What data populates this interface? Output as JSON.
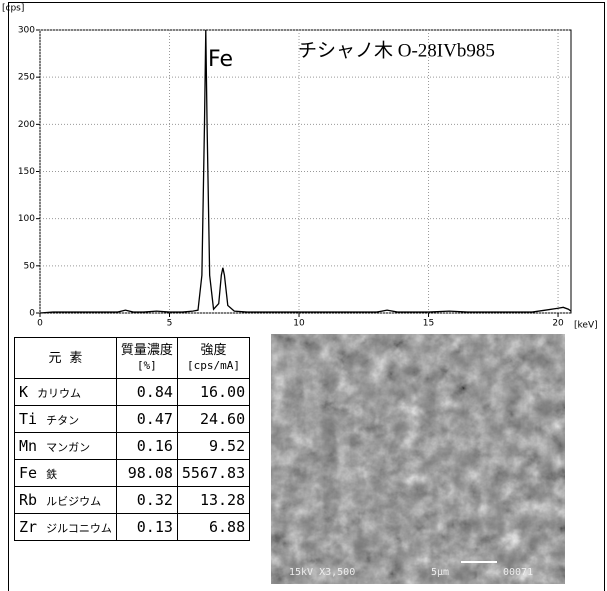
{
  "chart_data": {
    "type": "line",
    "y_unit": "[cps]",
    "x_unit": "[keV]",
    "annotations": [
      "Fe",
      "チシャノ木 O-28IVb985"
    ],
    "color": "#000000",
    "x": [
      0,
      0.5,
      1,
      1.5,
      2,
      2.5,
      3,
      3.3,
      3.6,
      4,
      4.5,
      5,
      5.5,
      5.9,
      6.1,
      6.25,
      6.35,
      6.4,
      6.45,
      6.55,
      6.7,
      6.9,
      7.0,
      7.06,
      7.12,
      7.25,
      7.5,
      8,
      9,
      10,
      11,
      12,
      13,
      13.4,
      13.8,
      14,
      15,
      15.8,
      16.5,
      17,
      18,
      19,
      19.5,
      20,
      20.2,
      20.4,
      20.5
    ],
    "values": [
      0,
      1,
      1,
      1,
      1,
      1,
      1,
      3,
      1,
      1,
      2,
      1,
      1,
      2,
      3,
      40,
      200,
      300,
      200,
      40,
      4,
      10,
      40,
      48,
      40,
      8,
      2,
      1,
      1,
      1,
      1,
      1,
      1,
      3,
      1,
      1,
      1,
      2,
      1,
      1,
      1,
      1,
      3,
      5,
      6,
      4,
      2
    ],
    "xlim": [
      0,
      20.5
    ],
    "ylim": [
      0,
      300
    ],
    "xticks": [
      0,
      5,
      10,
      15,
      20
    ],
    "yticks": [
      0,
      50,
      100,
      150,
      200,
      250,
      300
    ],
    "grid": true
  },
  "table": {
    "header": [
      [
        "元 素"
      ],
      [
        "質量濃度",
        "[%]"
      ],
      [
        "強度",
        "[cps/mA]"
      ]
    ],
    "rows": [
      [
        "K",
        "カリウム",
        "0.84",
        "16.00"
      ],
      [
        "Ti",
        "チタン",
        "0.47",
        "24.60"
      ],
      [
        "Mn",
        "マンガン",
        "0.16",
        "9.52"
      ],
      [
        "Fe",
        "鉄",
        "98.08",
        "5567.83"
      ],
      [
        "Rb",
        "ルビジウム",
        "0.32",
        "13.28"
      ],
      [
        "Zr",
        "ジルコニウム",
        "0.13",
        "6.88"
      ]
    ]
  },
  "image": {
    "captions": [
      "15kV X3,500",
      "5μm",
      "00071"
    ]
  }
}
